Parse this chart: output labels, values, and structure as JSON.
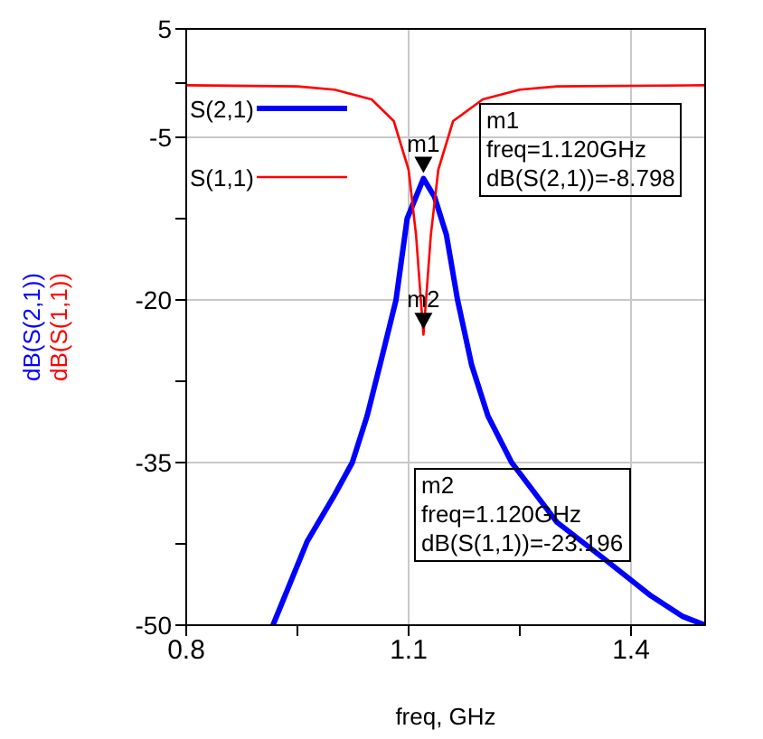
{
  "chart_data": {
    "type": "line",
    "xlabel": "freq, GHz",
    "ylabel": "dB(S(2,1))\ndB(S(1,1))",
    "xlim": [
      0.8,
      1.5
    ],
    "xticks": [
      0.8,
      {
        "value": 0.95,
        "label": null
      },
      1.1,
      {
        "value": 1.25,
        "label": null
      },
      1.4
    ],
    "ylim": [
      -50,
      5
    ],
    "yticks": [
      5,
      {
        "value": 0,
        "label": null
      },
      -5,
      {
        "value": -12.5,
        "label": null
      },
      -20,
      {
        "value": -27.5,
        "label": null
      },
      -35,
      {
        "value": -42.5,
        "label": null
      },
      -50
    ],
    "grid": true,
    "legend": "top left",
    "marker": "none",
    "series": [
      {
        "name": "S(2,1)",
        "color": "#0000ff",
        "x": [
          0.917,
          0.963,
          1.0,
          1.024,
          1.044,
          1.065,
          1.083,
          1.098,
          1.12,
          1.135,
          1.151,
          1.166,
          1.185,
          1.207,
          1.239,
          1.3,
          1.366,
          1.427,
          1.47,
          1.5
        ],
        "values": [
          -50,
          -42.3,
          -38,
          -35,
          -30.7,
          -25,
          -20,
          -12.5,
          -8.8,
          -10.5,
          -14,
          -20,
          -26,
          -30.7,
          -35,
          -40.5,
          -44,
          -47.3,
          -49.2,
          -50
        ]
      },
      {
        "name": "S(1,1)",
        "color": "#ff0000",
        "x": [
          0.8,
          0.95,
          1.0,
          1.05,
          1.08,
          1.1,
          1.11,
          1.12,
          1.13,
          1.14,
          1.16,
          1.2,
          1.25,
          1.3,
          1.5
        ],
        "values": [
          -0.2,
          -0.3,
          -0.6,
          -1.5,
          -3.5,
          -8,
          -14,
          -23.2,
          -14,
          -8,
          -3.5,
          -1.5,
          -0.6,
          -0.3,
          -0.2
        ]
      }
    ],
    "annotations": [
      {
        "text": "m1",
        "x": 1.12,
        "y": -8.798
      },
      {
        "text": "m2",
        "x": 1.12,
        "y": -23.196
      },
      "m1\nfreq=1.120GHz\ndB(S(2,1))=-8.798",
      "m2\nfreq=1.120GHz\ndB(S(1,1))=-23.196"
    ]
  }
}
